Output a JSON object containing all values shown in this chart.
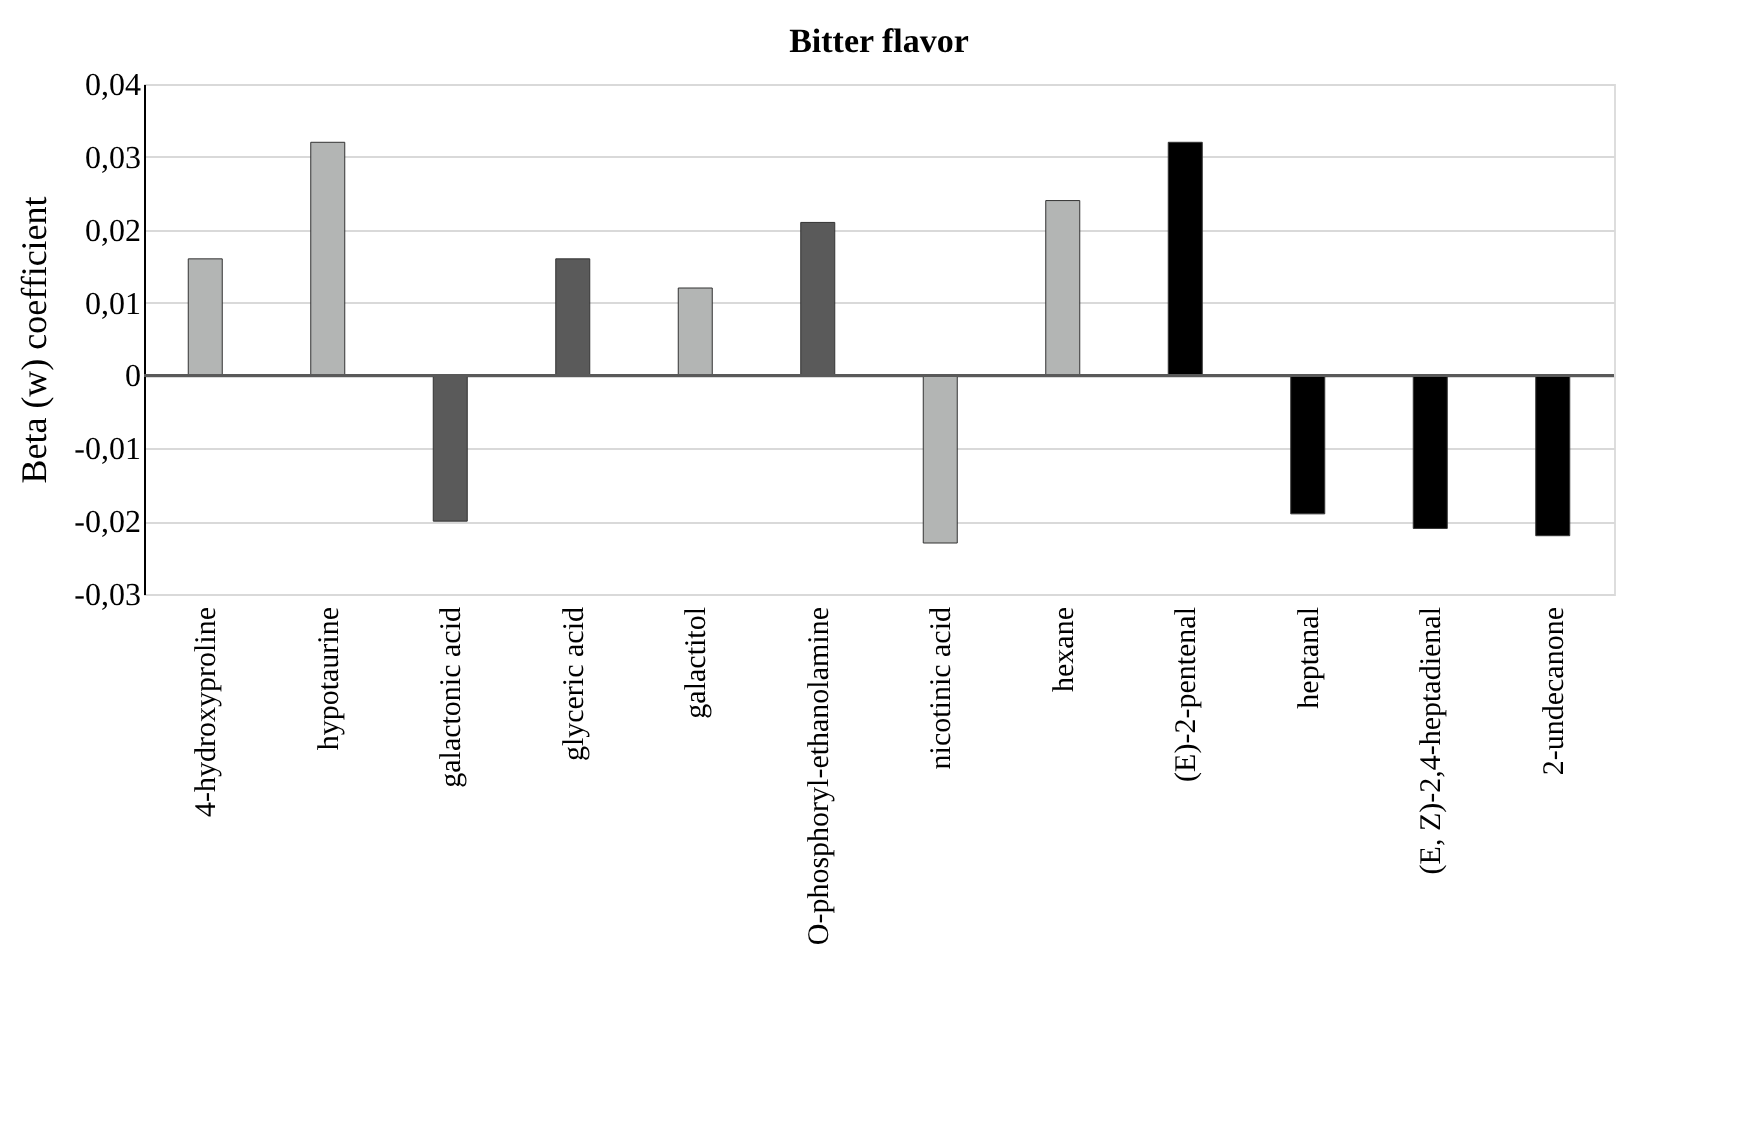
{
  "chart_data": {
    "type": "bar",
    "title": "Bitter flavor",
    "ylabel": "Beta (w) coefficient",
    "categories": [
      "4-hydroxyproline",
      "hypotaurine",
      "galactonic acid",
      "glyceric acid",
      "galactitol",
      "O-phosphoryl-ethanolamine",
      "nicotinic acid",
      "hexane",
      "(E)-2-pentenal",
      "heptanal",
      "(E, Z)-2,4-heptadienal",
      "2-undecanone"
    ],
    "values": [
      0.016,
      0.032,
      -0.02,
      0.016,
      0.012,
      0.021,
      -0.023,
      0.024,
      0.032,
      -0.019,
      -0.021,
      -0.022
    ],
    "colors": [
      "#b3b5b4",
      "#b3b5b4",
      "#5a5a5a",
      "#5a5a5a",
      "#b3b5b4",
      "#5a5a5a",
      "#b3b5b4",
      "#b3b5b4",
      "#000000",
      "#000000",
      "#000000",
      "#000000"
    ],
    "ylim": [
      -0.03,
      0.04
    ],
    "yticks": [
      {
        "value": 0.04,
        "label": "0,04"
      },
      {
        "value": 0.03,
        "label": "0,03"
      },
      {
        "value": 0.02,
        "label": "0,02"
      },
      {
        "value": 0.01,
        "label": "0,01"
      },
      0,
      {
        "value": -0.01,
        "label": "-0,01"
      },
      {
        "value": -0.02,
        "label": "-0,02"
      },
      {
        "value": -0.03,
        "label": "-0,03"
      }
    ],
    "grid": "y"
  }
}
